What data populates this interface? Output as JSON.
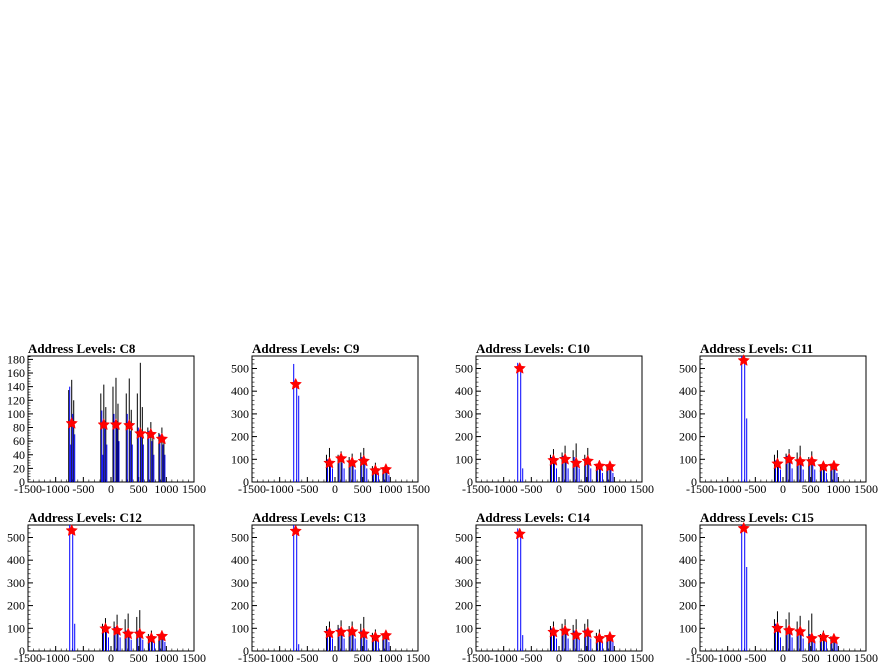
{
  "figure": {
    "background": "#ffffff"
  },
  "colors": {
    "hist_black": "#000000",
    "hist_blue": "#0000ff",
    "marker": "#ff0000"
  },
  "chart_data": [
    {
      "type": "bar",
      "title": "Address Levels: C8",
      "xlim": [
        -1500,
        1500
      ],
      "ylim": [
        0,
        185
      ],
      "xticks": [
        "-1500",
        "-1000",
        "-500",
        "0",
        "500",
        "1000",
        "1500"
      ],
      "yticks": [
        "0",
        "20",
        "40",
        "60",
        "80",
        "100",
        "120",
        "140",
        "160",
        "180"
      ],
      "peaks": [
        {
          "x": -710,
          "black": [
            150,
            135,
            120
          ],
          "blue": [
            140,
            100,
            70,
            55
          ],
          "marker": 86
        },
        {
          "x": -130,
          "black": [
            143,
            130,
            110
          ],
          "blue": [
            105,
            90,
            55,
            40
          ],
          "marker": 84
        },
        {
          "x": 90,
          "black": [
            153,
            140,
            115
          ],
          "blue": [
            100,
            80,
            60
          ],
          "marker": 84
        },
        {
          "x": 330,
          "black": [
            152,
            130,
            106
          ],
          "blue": [
            100,
            75,
            55
          ],
          "marker": 83
        },
        {
          "x": 530,
          "black": [
            175,
            130,
            110
          ],
          "blue": [
            80,
            70,
            55
          ],
          "marker": 71
        },
        {
          "x": 720,
          "black": [
            88,
            80,
            70
          ],
          "blue": [
            75,
            60,
            40
          ],
          "marker": 70
        },
        {
          "x": 920,
          "black": [
            80,
            72,
            60
          ],
          "blue": [
            70,
            55,
            40
          ],
          "marker": 63
        }
      ]
    },
    {
      "type": "bar",
      "title": "Address Levels: C9",
      "xlim": [
        -1500,
        1500
      ],
      "ylim": [
        0,
        555
      ],
      "xticks": [
        "-1500",
        "-1000",
        "-500",
        "0",
        "500",
        "1000",
        "1500"
      ],
      "yticks": [
        "0",
        "100",
        "200",
        "300",
        "400",
        "500"
      ],
      "peaks": [
        {
          "x": -710,
          "black": [],
          "blue": [
            520,
            430,
            380
          ],
          "marker": 430
        },
        {
          "x": -100,
          "black": [
            150,
            120
          ],
          "blue": [
            100,
            85,
            60
          ],
          "marker": 83
        },
        {
          "x": 110,
          "black": [
            135,
            120
          ],
          "blue": [
            100,
            85,
            60
          ],
          "marker": 103
        },
        {
          "x": 310,
          "black": [
            125,
            110
          ],
          "blue": [
            95,
            80,
            55
          ],
          "marker": 85
        },
        {
          "x": 520,
          "black": [
            150,
            130
          ],
          "blue": [
            110,
            90,
            60
          ],
          "marker": 92
        },
        {
          "x": 730,
          "black": [
            85,
            70
          ],
          "blue": [
            60,
            50,
            40
          ],
          "marker": 50
        },
        {
          "x": 920,
          "black": [
            70,
            60
          ],
          "blue": [
            55,
            45,
            30
          ],
          "marker": 55
        }
      ]
    },
    {
      "type": "bar",
      "title": "Address Levels: C10",
      "xlim": [
        -1500,
        1500
      ],
      "ylim": [
        0,
        555
      ],
      "xticks": [
        "-1500",
        "-1000",
        "-500",
        "0",
        "500",
        "1000",
        "1500"
      ],
      "yticks": [
        "0",
        "100",
        "200",
        "300",
        "400",
        "500"
      ],
      "peaks": [
        {
          "x": -710,
          "black": [],
          "blue": [
            525,
            500,
            60
          ],
          "marker": 500
        },
        {
          "x": -100,
          "black": [
            145,
            120
          ],
          "blue": [
            110,
            90,
            60
          ],
          "marker": 95
        },
        {
          "x": 110,
          "black": [
            160,
            130
          ],
          "blue": [
            115,
            90,
            60
          ],
          "marker": 100
        },
        {
          "x": 310,
          "black": [
            170,
            140
          ],
          "blue": [
            110,
            85,
            60
          ],
          "marker": 83
        },
        {
          "x": 520,
          "black": [
            150,
            120
          ],
          "blue": [
            105,
            85,
            60
          ],
          "marker": 92
        },
        {
          "x": 730,
          "black": [
            95,
            80
          ],
          "blue": [
            75,
            60,
            40
          ],
          "marker": 70
        },
        {
          "x": 920,
          "black": [
            85,
            70
          ],
          "blue": [
            70,
            55,
            40
          ],
          "marker": 68
        }
      ]
    },
    {
      "type": "bar",
      "title": "Address Levels: C11",
      "xlim": [
        -1500,
        1500
      ],
      "ylim": [
        0,
        555
      ],
      "xticks": [
        "-1500",
        "-1000",
        "-500",
        "0",
        "500",
        "1000",
        "1500"
      ],
      "yticks": [
        "0",
        "100",
        "200",
        "300",
        "400",
        "500"
      ],
      "peaks": [
        {
          "x": -710,
          "black": [],
          "blue": [
            555,
            530,
            280
          ],
          "marker": 535
        },
        {
          "x": -100,
          "black": [
            140,
            120
          ],
          "blue": [
            95,
            80,
            55
          ],
          "marker": 80
        },
        {
          "x": 110,
          "black": [
            145,
            125
          ],
          "blue": [
            115,
            95,
            60
          ],
          "marker": 100
        },
        {
          "x": 310,
          "black": [
            160,
            130
          ],
          "blue": [
            100,
            85,
            55
          ],
          "marker": 90
        },
        {
          "x": 520,
          "black": [
            135,
            110
          ],
          "blue": [
            100,
            80,
            55
          ],
          "marker": 90
        },
        {
          "x": 730,
          "black": [
            90,
            75
          ],
          "blue": [
            70,
            55,
            40
          ],
          "marker": 68
        },
        {
          "x": 920,
          "black": [
            90,
            80
          ],
          "blue": [
            75,
            60,
            40
          ],
          "marker": 70
        }
      ]
    },
    {
      "type": "bar",
      "title": "Address Levels: C12",
      "xlim": [
        -1500,
        1500
      ],
      "ylim": [
        0,
        555
      ],
      "xticks": [
        "-1500",
        "-1000",
        "-500",
        "0",
        "500",
        "1000",
        "1500"
      ],
      "yticks": [
        "0",
        "100",
        "200",
        "300",
        "400",
        "500"
      ],
      "peaks": [
        {
          "x": -710,
          "black": [],
          "blue": [
            555,
            530,
            120
          ],
          "marker": 530
        },
        {
          "x": -100,
          "black": [
            145,
            120
          ],
          "blue": [
            110,
            90,
            60
          ],
          "marker": 98
        },
        {
          "x": 110,
          "black": [
            160,
            130
          ],
          "blue": [
            105,
            85,
            60
          ],
          "marker": 90
        },
        {
          "x": 310,
          "black": [
            165,
            140
          ],
          "blue": [
            90,
            70,
            50
          ],
          "marker": 75
        },
        {
          "x": 520,
          "black": [
            180,
            150
          ],
          "blue": [
            90,
            75,
            50
          ],
          "marker": 75
        },
        {
          "x": 730,
          "black": [
            90,
            75
          ],
          "blue": [
            65,
            50,
            35
          ],
          "marker": 55
        },
        {
          "x": 920,
          "black": [
            85,
            70
          ],
          "blue": [
            70,
            55,
            40
          ],
          "marker": 65
        }
      ]
    },
    {
      "type": "bar",
      "title": "Address Levels: C13",
      "xlim": [
        -1500,
        1500
      ],
      "ylim": [
        0,
        555
      ],
      "xticks": [
        "-1500",
        "-1000",
        "-500",
        "0",
        "500",
        "1000",
        "1500"
      ],
      "yticks": [
        "0",
        "100",
        "200",
        "300",
        "400",
        "500"
      ],
      "peaks": [
        {
          "x": -710,
          "black": [],
          "blue": [
            555,
            530,
            30
          ],
          "marker": 528
        },
        {
          "x": -100,
          "black": [
            130,
            110
          ],
          "blue": [
            95,
            80,
            55
          ],
          "marker": 78
        },
        {
          "x": 110,
          "black": [
            135,
            115
          ],
          "blue": [
            100,
            80,
            55
          ],
          "marker": 83
        },
        {
          "x": 310,
          "black": [
            130,
            110
          ],
          "blue": [
            95,
            80,
            55
          ],
          "marker": 85
        },
        {
          "x": 520,
          "black": [
            150,
            120
          ],
          "blue": [
            90,
            75,
            50
          ],
          "marker": 75
        },
        {
          "x": 730,
          "black": [
            95,
            80
          ],
          "blue": [
            65,
            55,
            40
          ],
          "marker": 60
        },
        {
          "x": 920,
          "black": [
            85,
            70
          ],
          "blue": [
            70,
            55,
            40
          ],
          "marker": 68
        }
      ]
    },
    {
      "type": "bar",
      "title": "Address Levels: C14",
      "xlim": [
        -1500,
        1500
      ],
      "ylim": [
        0,
        555
      ],
      "xticks": [
        "-1500",
        "-1000",
        "-500",
        "0",
        "500",
        "1000",
        "1500"
      ],
      "yticks": [
        "0",
        "100",
        "200",
        "300",
        "400",
        "500"
      ],
      "peaks": [
        {
          "x": -710,
          "black": [],
          "blue": [
            540,
            515,
            70
          ],
          "marker": 515
        },
        {
          "x": -100,
          "black": [
            130,
            110
          ],
          "blue": [
            100,
            80,
            55
          ],
          "marker": 83
        },
        {
          "x": 110,
          "black": [
            140,
            120
          ],
          "blue": [
            100,
            85,
            55
          ],
          "marker": 88
        },
        {
          "x": 310,
          "black": [
            140,
            115
          ],
          "blue": [
            90,
            75,
            50
          ],
          "marker": 70
        },
        {
          "x": 520,
          "black": [
            140,
            120
          ],
          "blue": [
            95,
            80,
            55
          ],
          "marker": 80
        },
        {
          "x": 730,
          "black": [
            95,
            80
          ],
          "blue": [
            65,
            50,
            40
          ],
          "marker": 55
        },
        {
          "x": 920,
          "black": [
            85,
            70
          ],
          "blue": [
            70,
            55,
            40
          ],
          "marker": 60
        }
      ]
    },
    {
      "type": "bar",
      "title": "Address Levels: C15",
      "xlim": [
        -1500,
        1500
      ],
      "ylim": [
        0,
        555
      ],
      "xticks": [
        "-1500",
        "-1000",
        "-500",
        "0",
        "500",
        "1000",
        "1500"
      ],
      "yticks": [
        "0",
        "100",
        "200",
        "300",
        "400",
        "500"
      ],
      "peaks": [
        {
          "x": -710,
          "black": [],
          "blue": [
            555,
            540,
            370
          ],
          "marker": 540
        },
        {
          "x": -100,
          "black": [
            175,
            140
          ],
          "blue": [
            120,
            95,
            60
          ],
          "marker": 100
        },
        {
          "x": 110,
          "black": [
            170,
            140
          ],
          "blue": [
            100,
            85,
            60
          ],
          "marker": 90
        },
        {
          "x": 310,
          "black": [
            155,
            130
          ],
          "blue": [
            95,
            80,
            55
          ],
          "marker": 85
        },
        {
          "x": 520,
          "black": [
            165,
            135
          ],
          "blue": [
            75,
            60,
            45
          ],
          "marker": 55
        },
        {
          "x": 730,
          "black": [
            90,
            75
          ],
          "blue": [
            65,
            55,
            40
          ],
          "marker": 60
        },
        {
          "x": 920,
          "black": [
            75,
            65
          ],
          "blue": [
            60,
            50,
            35
          ],
          "marker": 52
        }
      ]
    }
  ]
}
